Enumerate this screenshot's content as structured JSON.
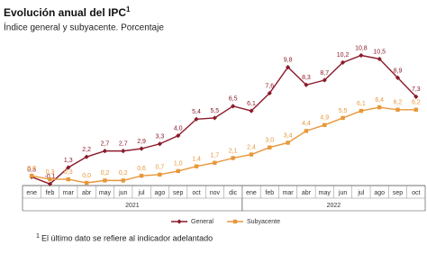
{
  "chart_data": {
    "type": "line",
    "title": "Evolución anual del IPC",
    "title_note_mark": "1",
    "subtitle": "Índice general y subyacente. Porcentaje",
    "groups": [
      {
        "label": "2021",
        "categories": [
          "ene",
          "feb",
          "mar",
          "abr",
          "may",
          "jun",
          "jul",
          "ago",
          "sep",
          "oct",
          "nov",
          "dic"
        ]
      },
      {
        "label": "2022",
        "categories": [
          "ene",
          "feb",
          "mar",
          "abr",
          "may",
          "jun",
          "jul",
          "ago",
          "sep",
          "oct"
        ]
      }
    ],
    "series": [
      {
        "name": "General",
        "color": "#8b1a2b",
        "marker": "diamond",
        "values": [
          0.5,
          -0.1,
          1.3,
          2.2,
          2.7,
          2.7,
          2.9,
          3.3,
          4.0,
          5.4,
          5.5,
          6.5,
          6.1,
          7.6,
          9.8,
          8.3,
          8.7,
          10.2,
          10.8,
          10.5,
          8.9,
          7.3
        ],
        "value_labels": [
          "0,5",
          "-0,1",
          "1,3",
          "2,2",
          "2,7",
          "2,7",
          "2,9",
          "3,3",
          "4,0",
          "5,4",
          "5,5",
          "6,5",
          "6,1",
          "7,6",
          "9,8",
          "8,3",
          "8,7",
          "10,2",
          "10,8",
          "10,5",
          "8,9",
          "7,3"
        ]
      },
      {
        "name": "Subyacente",
        "color": "#e8973a",
        "marker": "square",
        "values": [
          0.6,
          0.3,
          0.3,
          0.0,
          0.2,
          0.2,
          0.6,
          0.7,
          1.0,
          1.4,
          1.7,
          2.1,
          2.4,
          3.0,
          3.4,
          4.4,
          4.9,
          5.5,
          6.1,
          6.4,
          6.2,
          6.2
        ],
        "value_labels": [
          "0,6",
          "0,3",
          "0,3",
          "0,0",
          "0,2",
          "0,2",
          "0,6",
          "0,7",
          "1,0",
          "1,4",
          "1,7",
          "2,1",
          "2,4",
          "3,0",
          "3,4",
          "4,4",
          "4,9",
          "5,5",
          "6,1",
          "6,4",
          "6,2",
          "6,2"
        ]
      }
    ],
    "footnote_mark": "1",
    "footnote": "El último dato se refiere al indicador adelantado"
  }
}
